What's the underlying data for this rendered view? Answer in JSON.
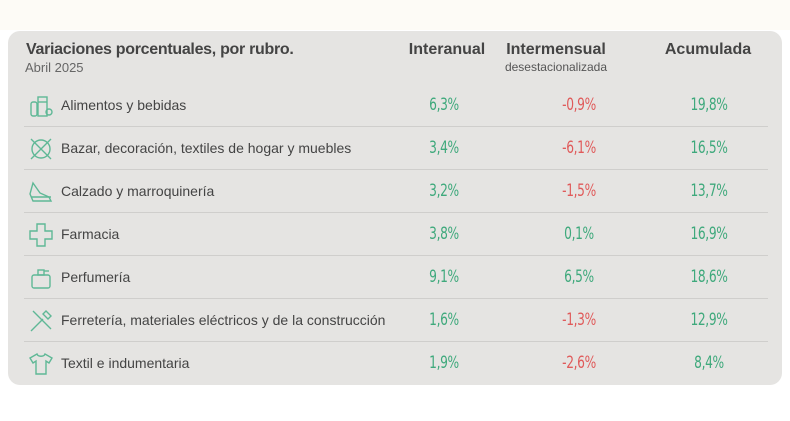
{
  "header": {
    "title": "Variaciones porcentuales, por rubro.",
    "subtitle": "Abril 2025",
    "columns": [
      {
        "label": "Interanual"
      },
      {
        "label": "Intermensual",
        "sublabel": "desestacionalizada"
      },
      {
        "label": "Acumulada"
      }
    ]
  },
  "colors": {
    "positive": "#3fa97c",
    "negative": "#e05a5a",
    "card": "#e5e4e2",
    "icon": "#5fb896"
  },
  "rows": [
    {
      "icon": "grocery-icon",
      "label": "Alimentos y bebidas",
      "interanual": "6,3%",
      "intermensual": "-0,9%",
      "acumulada": "19,8%"
    },
    {
      "icon": "home-goods-icon",
      "label": "Bazar, decoración, textiles de hogar y muebles",
      "interanual": "3,4%",
      "intermensual": "-6,1%",
      "acumulada": "16,5%"
    },
    {
      "icon": "shoe-icon",
      "label": "Calzado y marroquinería",
      "interanual": "3,2%",
      "intermensual": "-1,5%",
      "acumulada": "13,7%"
    },
    {
      "icon": "pharmacy-cross-icon",
      "label": "Farmacia",
      "interanual": "3,8%",
      "intermensual": "0,1%",
      "acumulada": "16,9%"
    },
    {
      "icon": "perfume-icon",
      "label": "Perfumería",
      "interanual": "9,1%",
      "intermensual": "6,5%",
      "acumulada": "18,6%"
    },
    {
      "icon": "tools-icon",
      "label": "Ferretería, materiales eléctricos y de la construcción",
      "interanual": "1,6%",
      "intermensual": "-1,3%",
      "acumulada": "12,9%"
    },
    {
      "icon": "shirt-icon",
      "label": "Textil e indumentaria",
      "interanual": "1,9%",
      "intermensual": "-2,6%",
      "acumulada": "8,4%"
    }
  ]
}
